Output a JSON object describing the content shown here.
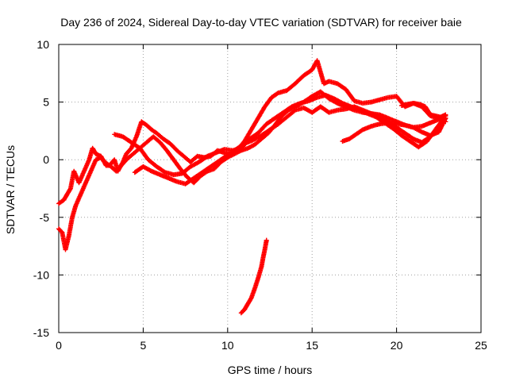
{
  "chart_data": {
    "type": "scatter",
    "title": "Day 236 of 2024, Sidereal Day-to-day VTEC variation (SDTVAR) for receiver baie",
    "xlabel": "GPS time / hours",
    "ylabel": "SDTVAR / TECUs",
    "xlim": [
      0,
      25
    ],
    "ylim": [
      -15,
      10
    ],
    "xticks": [
      0,
      5,
      10,
      15,
      20,
      25
    ],
    "yticks": [
      -15,
      -10,
      -5,
      0,
      5,
      10
    ],
    "xtick_labels": [
      "0",
      "5",
      "10",
      "15",
      "20",
      "25"
    ],
    "ytick_labels": [
      "-15",
      "-10",
      "-5",
      "0",
      "5",
      "10"
    ],
    "grid": true,
    "marker": "+",
    "color": "#ff0000",
    "series": [
      {
        "name": "track-a",
        "x": [
          0.0,
          0.3,
          0.5,
          0.7,
          0.9,
          1.2,
          1.5,
          1.8,
          2.0,
          2.2,
          2.5,
          2.8,
          3.0,
          3.3,
          3.5,
          3.8,
          4.0,
          4.3,
          4.6,
          4.9,
          5.2,
          5.5,
          5.8,
          6.2,
          6.6,
          7.0,
          7.4,
          7.8,
          8.2,
          8.6,
          9.0,
          9.4,
          9.8,
          10.2,
          10.6,
          11.0,
          11.4,
          11.8,
          12.2,
          12.6,
          13.0,
          13.5,
          14.0,
          14.5,
          15.0,
          15.3,
          15.5,
          15.7,
          16.0,
          16.5,
          17.0,
          17.5,
          18.0,
          18.5,
          19.0,
          19.5,
          20.0,
          20.5,
          21.0,
          21.5,
          22.0,
          22.5,
          22.9
        ],
        "y": [
          -3.8,
          -3.5,
          -3.0,
          -2.5,
          -1.0,
          -2.0,
          -1.0,
          0.0,
          1.0,
          0.5,
          0.3,
          -0.5,
          -0.5,
          0.0,
          -1.0,
          -0.2,
          0.5,
          1.0,
          2.0,
          3.3,
          3.0,
          2.6,
          2.3,
          1.8,
          1.4,
          0.8,
          0.3,
          -0.2,
          0.3,
          0.2,
          0.3,
          0.8,
          0.6,
          0.4,
          0.9,
          1.6,
          2.6,
          3.6,
          4.6,
          5.4,
          5.8,
          6.0,
          6.6,
          7.3,
          7.8,
          8.6,
          7.6,
          6.6,
          6.8,
          6.6,
          6.1,
          5.1,
          4.9,
          5.0,
          5.2,
          5.4,
          5.5,
          4.6,
          4.9,
          4.6,
          3.8,
          3.6,
          3.3
        ]
      },
      {
        "name": "track-b",
        "x": [
          0.0,
          0.2,
          0.4,
          0.6,
          0.8,
          1.0,
          1.3,
          1.6,
          1.9,
          2.2,
          2.5,
          2.8,
          3.1,
          3.4,
          3.7,
          4.0,
          4.4,
          4.8,
          5.2,
          5.6,
          6.0,
          6.4,
          6.8,
          7.2,
          7.6,
          8.0,
          8.4,
          8.8,
          9.2,
          9.6,
          10.0,
          10.4,
          10.8,
          11.2,
          11.6,
          12.0,
          12.4,
          12.8,
          13.2,
          13.6,
          14.0,
          14.5,
          15.0,
          15.5,
          16.0,
          16.5,
          17.0,
          17.5,
          18.0,
          18.5,
          19.0,
          19.5,
          20.0,
          20.5,
          21.0,
          21.5,
          22.0,
          22.5,
          22.9
        ],
        "y": [
          -6.0,
          -6.3,
          -7.8,
          -6.6,
          -5.0,
          -4.0,
          -3.0,
          -2.0,
          -1.0,
          0.0,
          0.2,
          -0.3,
          -0.6,
          -1.0,
          -0.5,
          0.0,
          0.5,
          1.0,
          1.5,
          2.0,
          1.5,
          0.8,
          0.0,
          -0.8,
          -1.5,
          -2.0,
          -1.4,
          -1.0,
          -0.8,
          -0.2,
          0.2,
          0.5,
          0.8,
          1.0,
          1.3,
          1.8,
          2.3,
          3.0,
          3.8,
          4.3,
          4.6,
          5.0,
          5.5,
          5.9,
          5.3,
          4.9,
          4.6,
          4.3,
          4.1,
          4.0,
          3.9,
          3.6,
          3.3,
          3.0,
          2.8,
          2.4,
          2.1,
          2.4,
          3.6
        ]
      },
      {
        "name": "track-c",
        "x": [
          3.3,
          3.8,
          4.3,
          4.8,
          5.3,
          5.8,
          6.3,
          6.8,
          7.3,
          7.8,
          8.3,
          8.8,
          9.3,
          9.8,
          10.3,
          10.8,
          11.3,
          11.8,
          12.3,
          12.8,
          13.3,
          13.8,
          14.3,
          14.8,
          15.3,
          15.8,
          16.3,
          16.8,
          17.3,
          17.8,
          18.3,
          18.8,
          19.3,
          19.8,
          20.3,
          20.8,
          21.3,
          21.8,
          22.3,
          22.8
        ],
        "y": [
          2.2,
          2.0,
          1.5,
          1.0,
          0.0,
          -0.6,
          -1.1,
          -1.3,
          -1.2,
          -0.6,
          -0.2,
          0.3,
          0.6,
          0.9,
          0.8,
          1.0,
          1.8,
          2.3,
          3.1,
          3.6,
          4.1,
          4.6,
          4.9,
          5.1,
          5.4,
          5.6,
          5.3,
          4.9,
          4.6,
          4.3,
          4.0,
          3.7,
          3.2,
          2.7,
          2.1,
          1.6,
          1.1,
          1.6,
          2.6,
          3.6
        ]
      },
      {
        "name": "track-d",
        "x": [
          4.5,
          5.0,
          5.5,
          6.0,
          6.5,
          7.0,
          7.5,
          8.0,
          8.5,
          9.0,
          9.5,
          10.0,
          10.5,
          11.0,
          11.5,
          12.0,
          12.5,
          13.0,
          13.5,
          14.0,
          14.5,
          15.0,
          15.5,
          16.0,
          16.5,
          17.0,
          17.5,
          18.0,
          18.5,
          19.0,
          19.5,
          20.0,
          20.5,
          21.0,
          21.5,
          22.0,
          22.5,
          22.9
        ],
        "y": [
          -1.1,
          -0.6,
          -1.0,
          -1.3,
          -1.6,
          -1.9,
          -2.1,
          -1.6,
          -1.1,
          -0.6,
          -0.1,
          0.4,
          0.9,
          1.4,
          1.7,
          2.1,
          2.6,
          3.1,
          3.7,
          4.3,
          4.5,
          4.1,
          4.6,
          4.1,
          4.3,
          4.4,
          4.6,
          4.3,
          4.0,
          3.7,
          3.3,
          2.8,
          2.3,
          1.8,
          1.5,
          2.0,
          2.8,
          3.6
        ]
      },
      {
        "name": "track-e",
        "x": [
          16.8,
          17.2,
          17.6,
          18.0,
          18.5,
          19.0,
          19.5,
          20.0,
          20.5,
          21.0,
          21.5,
          22.0,
          22.5,
          22.9
        ],
        "y": [
          1.6,
          1.8,
          2.2,
          2.6,
          2.9,
          3.1,
          3.2,
          3.1,
          3.0,
          2.8,
          2.9,
          3.2,
          3.5,
          3.8
        ]
      },
      {
        "name": "track-f",
        "x": [
          20.3,
          20.6,
          21.0,
          21.4,
          21.7,
          22.0,
          22.3,
          22.6,
          22.9
        ],
        "y": [
          4.7,
          4.8,
          4.9,
          4.8,
          4.6,
          3.9,
          3.8,
          3.7,
          3.9
        ]
      },
      {
        "name": "track-g",
        "x": [
          10.8,
          11.0,
          11.2,
          11.4,
          11.6,
          11.8,
          12.0,
          12.1,
          12.2,
          12.3
        ],
        "y": [
          -13.3,
          -13.0,
          -12.5,
          -12.0,
          -11.2,
          -10.3,
          -9.3,
          -8.5,
          -7.8,
          -7.0
        ]
      }
    ]
  }
}
